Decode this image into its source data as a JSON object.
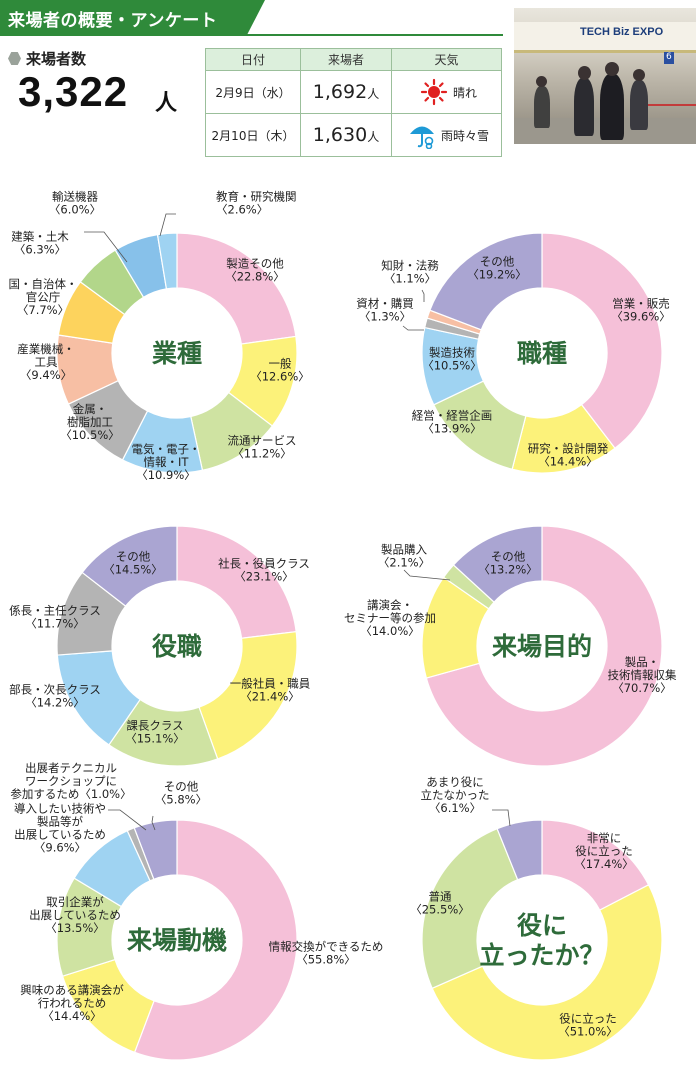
{
  "header": {
    "title": "来場者の概要・アンケート"
  },
  "summary": {
    "label": "来場者数",
    "value": "3,322",
    "unit": "人"
  },
  "table": {
    "columns": [
      "日付",
      "来場者",
      "天気"
    ],
    "rows": [
      {
        "date": "2月9日（水）",
        "count": "1,692",
        "unit": "人",
        "weather": "晴れ",
        "icon": "sun-icon"
      },
      {
        "date": "2月10日（木）",
        "count": "1,630",
        "unit": "人",
        "weather": "雨時々雪",
        "icon": "umbrella-snow-icon"
      }
    ]
  },
  "photo": {
    "banner": "TECH Biz EXPO",
    "sign": "6"
  },
  "colors": {
    "pink": "#f5c0d8",
    "yellow": "#fcf27a",
    "lightgreen": "#cfe3a2",
    "lightblue": "#9fd3f2",
    "gray": "#b4b4b4",
    "salmon": "#f7bfa4",
    "orange": "#fdd35d",
    "green": "#b2d68a",
    "blue": "#87c1ea",
    "purple": "#aaa5d2",
    "center_text": "#2e6b3a"
  },
  "chart_data": [
    {
      "type": "pie",
      "title": "業種",
      "categories": [
        "製造その他",
        "一般",
        "流通サービス",
        "電気・電子・情報・IT",
        "金属・樹脂加工",
        "産業機械・工具",
        "国・自治体・官公庁",
        "建築・土木",
        "輸送機器",
        "教育・研究機関"
      ],
      "values": [
        22.8,
        12.6,
        11.2,
        10.9,
        10.5,
        9.4,
        7.7,
        6.3,
        6.0,
        2.6
      ],
      "label_lines": [
        [
          "製造その他",
          "〈22.8%〉"
        ],
        [
          "一般",
          "〈12.6%〉"
        ],
        [
          "流通サービス",
          "〈11.2%〉"
        ],
        [
          "電気・電子・",
          "情報・IT",
          "〈10.9%〉"
        ],
        [
          "金属・",
          "樹脂加工",
          "〈10.5%〉"
        ],
        [
          "産業機械・",
          "工具",
          "〈9.4%〉"
        ],
        [
          "国・自治体・",
          "官公庁",
          "〈7.7%〉"
        ],
        [
          "建築・土木",
          "〈6.3%〉"
        ],
        [
          "輸送機器",
          "〈6.0%〉"
        ],
        [
          "教育・研究機関",
          "〈2.6%〉"
        ]
      ],
      "colors": [
        "#f5c0d8",
        "#fcf27a",
        "#cfe3a2",
        "#9fd3f2",
        "#b4b4b4",
        "#f7bfa4",
        "#fdd35d",
        "#b2d68a",
        "#87c1ea",
        "#9fd3f2"
      ]
    },
    {
      "type": "pie",
      "title": "職種",
      "categories": [
        "営業・販売",
        "研究・設計開発",
        "経営・経営企画",
        "製造技術",
        "資材・購買",
        "知財・法務",
        "その他"
      ],
      "values": [
        39.6,
        14.4,
        13.9,
        10.5,
        1.3,
        1.1,
        19.2
      ],
      "label_lines": [
        [
          "営業・販売",
          "〈39.6%〉"
        ],
        [
          "研究・設計開発",
          "〈14.4%〉"
        ],
        [
          "経営・経営企画",
          "〈13.9%〉"
        ],
        [
          "製造技術",
          "〈10.5%〉"
        ],
        [
          "資材・購買",
          "〈1.3%〉"
        ],
        [
          "知財・法務",
          "〈1.1%〉"
        ],
        [
          "その他",
          "〈19.2%〉"
        ]
      ],
      "colors": [
        "#f5c0d8",
        "#fcf27a",
        "#cfe3a2",
        "#9fd3f2",
        "#b4b4b4",
        "#f7bfa4",
        "#aaa5d2"
      ]
    },
    {
      "type": "pie",
      "title": "役職",
      "categories": [
        "社長・役員クラス",
        "一般社員・職員",
        "課長クラス",
        "部長・次長クラス",
        "係長・主任クラス",
        "その他"
      ],
      "values": [
        23.1,
        21.4,
        15.1,
        14.2,
        11.7,
        14.5
      ],
      "label_lines": [
        [
          "社長・役員クラス",
          "〈23.1%〉"
        ],
        [
          "一般社員・職員",
          "〈21.4%〉"
        ],
        [
          "課長クラス",
          "〈15.1%〉"
        ],
        [
          "部長・次長クラス",
          "〈14.2%〉"
        ],
        [
          "係長・主任クラス",
          "〈11.7%〉"
        ],
        [
          "その他",
          "〈14.5%〉"
        ]
      ],
      "colors": [
        "#f5c0d8",
        "#fcf27a",
        "#cfe3a2",
        "#9fd3f2",
        "#b4b4b4",
        "#aaa5d2"
      ]
    },
    {
      "type": "pie",
      "title": "来場目的",
      "categories": [
        "製品・技術情報収集",
        "講演会・セミナー等の参加",
        "製品購入",
        "その他"
      ],
      "values": [
        70.7,
        14.0,
        2.1,
        13.2
      ],
      "label_lines": [
        [
          "製品・",
          "技術情報収集",
          "〈70.7%〉"
        ],
        [
          "講演会・",
          "セミナー等の参加",
          "〈14.0%〉"
        ],
        [
          "製品購入",
          "〈2.1%〉"
        ],
        [
          "その他",
          "〈13.2%〉"
        ]
      ],
      "colors": [
        "#f5c0d8",
        "#fcf27a",
        "#cfe3a2",
        "#aaa5d2"
      ]
    },
    {
      "type": "pie",
      "title": "来場動機",
      "categories": [
        "情報交換ができるため",
        "興味のある講演会が行われるため",
        "取引企業が出展しているため",
        "導入したい技術や製品等が出展しているため",
        "出展者テクニカルワークショップに参加するため",
        "その他"
      ],
      "values": [
        55.8,
        14.4,
        13.5,
        9.6,
        1.0,
        5.8
      ],
      "label_lines": [
        [
          "情報交換ができるため",
          "〈55.8%〉"
        ],
        [
          "興味のある講演会が",
          "行われるため",
          "〈14.4%〉"
        ],
        [
          "取引企業が",
          "出展しているため",
          "〈13.5%〉"
        ],
        [
          "導入したい技術や",
          "製品等が",
          "出展しているため",
          "〈9.6%〉"
        ],
        [
          "出展者テクニカル",
          "ワークショップに",
          "参加するため〈1.0%〉"
        ],
        [
          "その他",
          "〈5.8%〉"
        ]
      ],
      "colors": [
        "#f5c0d8",
        "#fcf27a",
        "#cfe3a2",
        "#9fd3f2",
        "#b4b4b4",
        "#aaa5d2"
      ]
    },
    {
      "type": "pie",
      "title": "役に立ったか？",
      "title_lines": [
        "役に",
        "立ったか？"
      ],
      "categories": [
        "非常に役に立った",
        "役に立った",
        "普通",
        "あまり役に立たなかった"
      ],
      "values": [
        17.4,
        51.0,
        25.5,
        6.1
      ],
      "label_lines": [
        [
          "非常に",
          "役に立った",
          "〈17.4%〉"
        ],
        [
          "役に立った",
          "〈51.0%〉"
        ],
        [
          "普通",
          "〈25.5%〉"
        ],
        [
          "あまり役に",
          "立たなかった",
          "〈6.1%〉"
        ]
      ],
      "colors": [
        "#f5c0d8",
        "#fcf27a",
        "#cfe3a2",
        "#aaa5d2"
      ]
    }
  ]
}
